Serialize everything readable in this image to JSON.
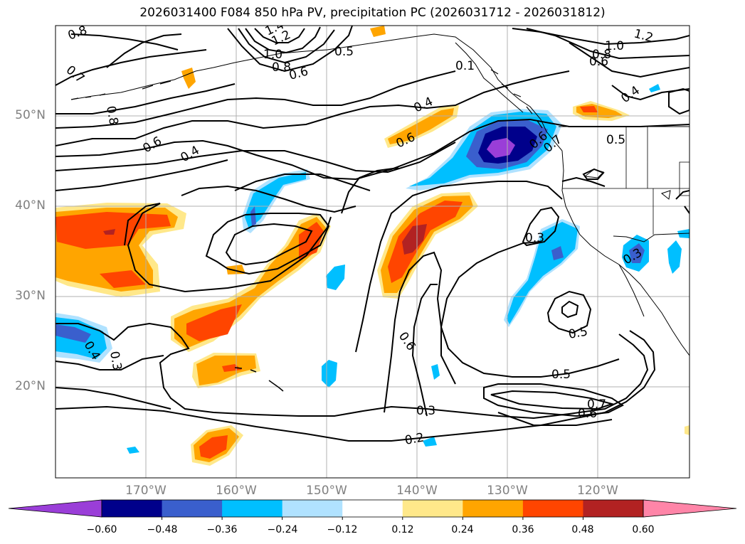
{
  "title": "2026031400 F084 850 hPa PV, precipitation PC (2026031712 - 2026031812)",
  "lat_labels": [
    "50°N",
    "40°N",
    "30°N",
    "20°N"
  ],
  "lon_labels": [
    "170°W",
    "160°W",
    "150°W",
    "140°W",
    "130°W",
    "120°W"
  ],
  "colorbar": {
    "ticks": [
      "−0.60",
      "−0.48",
      "−0.36",
      "−0.24",
      "−0.12",
      "0.12",
      "0.24",
      "0.36",
      "0.48",
      "0.60"
    ],
    "colors": [
      "#9a3ed8",
      "#00008b",
      "#3a5fcd",
      "#00bfff",
      "#b0e2ff",
      "#ffffff",
      "#ffe88a",
      "#ffa500",
      "#ff4500",
      "#b22222",
      "#ff85a8"
    ]
  },
  "contour_labels": [
    "0.8",
    "1.4",
    "1.2",
    "1.0",
    "0.8",
    "0.6",
    "0.5",
    "0.1",
    "0.7",
    "0.8",
    "0.6",
    "0.4",
    "0.4",
    "0.6",
    "0.6",
    "0.5",
    "0.3",
    "0.4",
    "0.3",
    "0.3",
    "0.6",
    "0.5",
    "0.5",
    "0.3",
    "0.2",
    "0.7",
    "0.6",
    "0.7",
    "1.2",
    "1.0",
    "0.8",
    "0.6",
    "0.4"
  ],
  "icons": {
    "colorbar_min_arrow": "triangle-left",
    "colorbar_max_arrow": "triangle-right"
  }
}
